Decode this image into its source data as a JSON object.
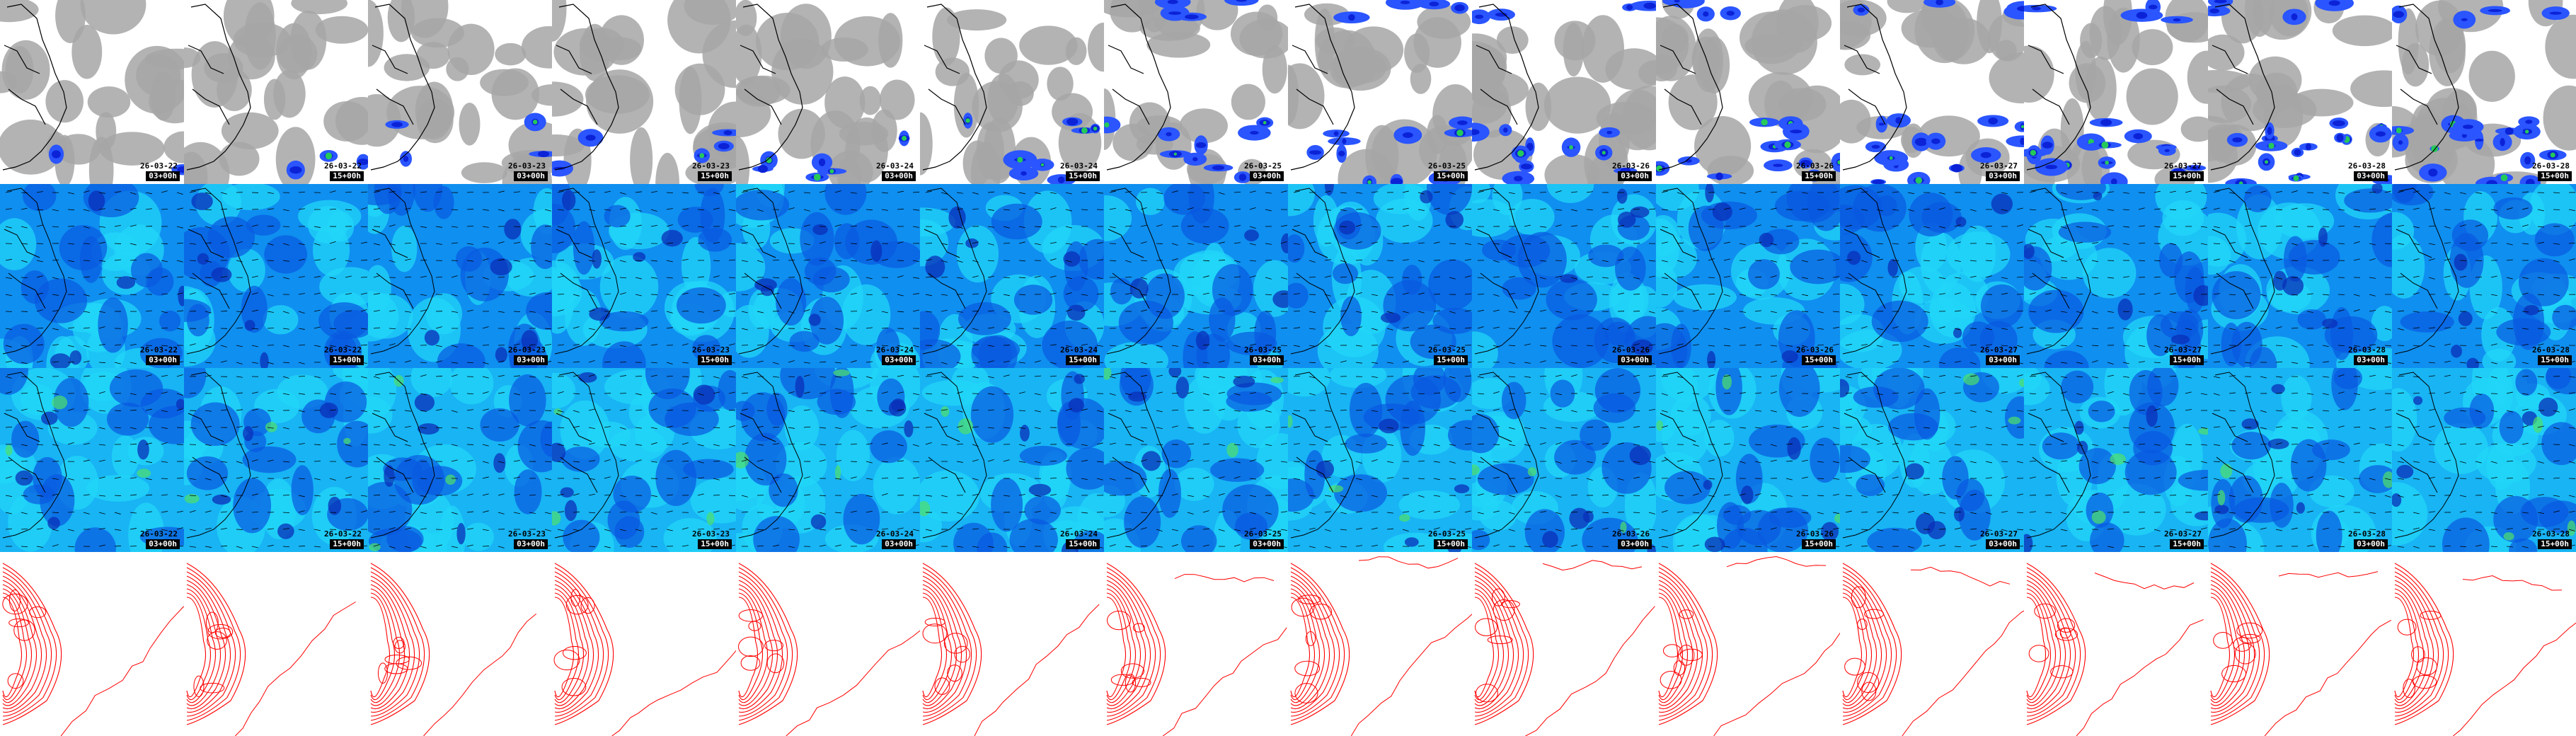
{
  "frames": [
    {
      "date": "26-03-22",
      "hour": "03+00h"
    },
    {
      "date": "26-03-22",
      "hour": "15+00h"
    },
    {
      "date": "26-03-23",
      "hour": "03+00h"
    },
    {
      "date": "26-03-23",
      "hour": "15+00h"
    },
    {
      "date": "26-03-24",
      "hour": "03+00h"
    },
    {
      "date": "26-03-24",
      "hour": "15+00h"
    },
    {
      "date": "26-03-25",
      "hour": "03+00h"
    },
    {
      "date": "26-03-25",
      "hour": "15+00h"
    },
    {
      "date": "26-03-26",
      "hour": "03+00h"
    },
    {
      "date": "26-03-26",
      "hour": "15+00h"
    },
    {
      "date": "26-03-27",
      "hour": "03+00h"
    },
    {
      "date": "26-03-27",
      "hour": "15+00h"
    },
    {
      "date": "26-03-28",
      "hour": "03+00h"
    },
    {
      "date": "26-03-28",
      "hour": "15+00h"
    }
  ],
  "rows": [
    {
      "key": "clouds-precip",
      "stamped": true
    },
    {
      "key": "wind-field-a",
      "stamped": true
    },
    {
      "key": "wind-field-b",
      "stamped": true
    },
    {
      "key": "pressure-contours",
      "stamped": false
    }
  ],
  "colors": {
    "background": "#ffffff",
    "cloud": "#a6a6a6",
    "precip_light": "#2a55ff",
    "precip_mid": "#0b22d6",
    "precip_high": "#25c95a",
    "wind_base_a": "#0f8ff0",
    "wind_base_b": "#18b4f4",
    "wind_light": "#21d6f8",
    "wind_dark": "#0858e0",
    "wind_darker": "#0a2fb8",
    "wind_green": "#4ee06a",
    "coast": "#000000",
    "contour": "#ff0000"
  }
}
